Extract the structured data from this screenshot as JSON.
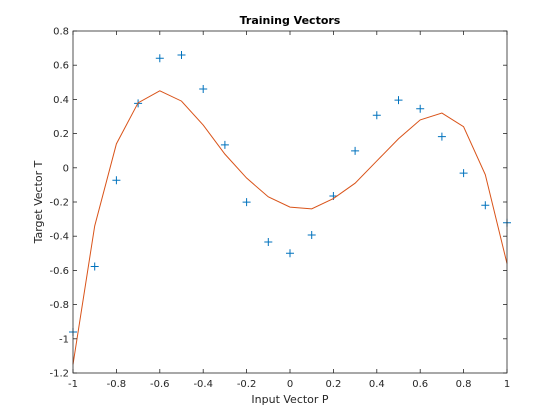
{
  "chart_data": {
    "type": "scatter",
    "title": "Training Vectors",
    "xlabel": "Input Vector P",
    "ylabel": "Target Vector T",
    "xlim": [
      -1,
      1
    ],
    "ylim": [
      -1.2,
      0.8
    ],
    "xticks": [
      "-1",
      "-0.8",
      "-0.6",
      "-0.4",
      "-0.2",
      "0",
      "0.2",
      "0.4",
      "0.6",
      "0.8",
      "1"
    ],
    "yticks": [
      "-1.2",
      "-1",
      "-0.8",
      "-0.6",
      "-0.4",
      "-0.2",
      "0",
      "0.2",
      "0.4",
      "0.6",
      "0.8"
    ],
    "grid": false,
    "series": [
      {
        "kind": "markers",
        "marker": "+",
        "color": "#0072BD",
        "x": [
          -1,
          -0.9,
          -0.8,
          -0.7,
          -0.6,
          -0.5,
          -0.4,
          -0.3,
          -0.2,
          -0.1,
          0,
          0.1,
          0.2,
          0.3,
          0.4,
          0.5,
          0.6,
          0.7,
          0.8,
          0.9,
          1
        ],
        "y": [
          -0.96,
          -0.577,
          -0.073,
          0.377,
          0.641,
          0.66,
          0.461,
          0.134,
          -0.201,
          -0.434,
          -0.5,
          -0.393,
          -0.165,
          0.099,
          0.307,
          0.396,
          0.345,
          0.182,
          -0.031,
          -0.219,
          -0.321
        ]
      },
      {
        "kind": "line",
        "color": "#D95319",
        "x": [
          -1,
          -0.9,
          -0.8,
          -0.7,
          -0.6,
          -0.5,
          -0.4,
          -0.3,
          -0.2,
          -0.1,
          0,
          0.1,
          0.2,
          0.3,
          0.4,
          0.5,
          0.6,
          0.7,
          0.8,
          0.9,
          1
        ],
        "y": [
          -1.15,
          -0.34,
          0.14,
          0.38,
          0.45,
          0.39,
          0.25,
          0.08,
          -0.06,
          -0.17,
          -0.23,
          -0.24,
          -0.18,
          -0.09,
          0.04,
          0.17,
          0.28,
          0.32,
          0.24,
          -0.04,
          -0.56
        ]
      }
    ]
  }
}
